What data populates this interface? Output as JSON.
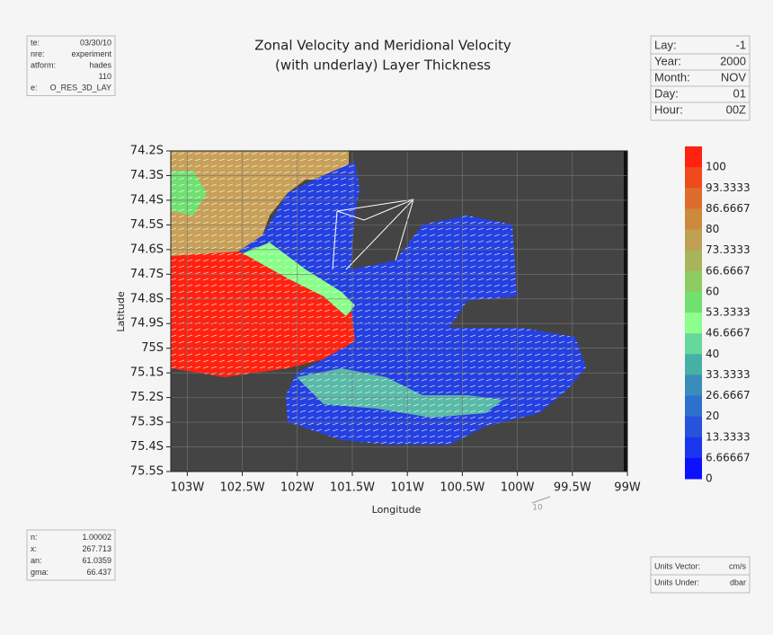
{
  "chart_data": {
    "type": "map",
    "title": [
      "Zonal Velocity and Meridional Velocity",
      "(with underlay) Layer Thickness"
    ],
    "xlabel": "Longitude",
    "ylabel": "Latitude",
    "xlim": [
      -103.15,
      -99
    ],
    "ylim": [
      -75.5,
      -74.2
    ],
    "xticks": [
      {
        "value": -103,
        "label": "103W"
      },
      {
        "value": -102.5,
        "label": "102.5W"
      },
      {
        "value": -102,
        "label": "102W"
      },
      {
        "value": -101.5,
        "label": "101.5W"
      },
      {
        "value": -101,
        "label": "101W"
      },
      {
        "value": -100.5,
        "label": "100.5W"
      },
      {
        "value": -100,
        "label": "100W"
      },
      {
        "value": -99.5,
        "label": "99.5W"
      },
      {
        "value": -99,
        "label": "99W"
      }
    ],
    "yticks": [
      {
        "value": -74.2,
        "label": "74.2S"
      },
      {
        "value": -74.3,
        "label": "74.3S"
      },
      {
        "value": -74.4,
        "label": "74.4S"
      },
      {
        "value": -74.5,
        "label": "74.5S"
      },
      {
        "value": -74.6,
        "label": "74.6S"
      },
      {
        "value": -74.7,
        "label": "74.7S"
      },
      {
        "value": -74.8,
        "label": "74.8S"
      },
      {
        "value": -74.9,
        "label": "74.9S"
      },
      {
        "value": -75,
        "label": "75S"
      },
      {
        "value": -75.1,
        "label": "75.1S"
      },
      {
        "value": -75.2,
        "label": "75.2S"
      },
      {
        "value": -75.3,
        "label": "75.3S"
      },
      {
        "value": -75.4,
        "label": "75.4S"
      },
      {
        "value": -75.5,
        "label": "75.5S"
      }
    ],
    "grid": true,
    "colorbar": {
      "levels": [
        100,
        93.3333,
        86.6667,
        80,
        73.3333,
        66.6667,
        60,
        53.3333,
        46.6667,
        40,
        33.3333,
        26.6667,
        20,
        13.3333,
        6.66667,
        0
      ],
      "colors": [
        "#ff2210",
        "#ee4a1c",
        "#dd6c2c",
        "#cc8a3c",
        "#c0a052",
        "#a8b45c",
        "#8ccc62",
        "#70e06e",
        "#8cff8c",
        "#66d89a",
        "#46b0a6",
        "#3a8cba",
        "#2e70cc",
        "#2652dc",
        "#1a36ec",
        "#0c10ff"
      ]
    },
    "reference_vector": "10"
  },
  "info_top_left": [
    [
      "te:",
      "03/30/10"
    ],
    [
      "nre:",
      "experiment"
    ],
    [
      "atform:",
      "hades"
    ],
    [
      "110"
    ],
    [
      "e:",
      "O_RES_3D_LAY"
    ]
  ],
  "info_top_right": [
    [
      "Lay:",
      "-1"
    ],
    [
      "Year:",
      "2000"
    ],
    [
      "Month:",
      "NOV"
    ],
    [
      "Day:",
      "01"
    ],
    [
      "Hour:",
      "00Z"
    ]
  ],
  "info_bottom_left": [
    [
      "n:",
      "1.00002"
    ],
    [
      "x:",
      "267.713"
    ],
    [
      "an:",
      "61.0359"
    ],
    [
      "gma:",
      "66.437"
    ]
  ],
  "info_bottom_right": [
    [
      "Units Vector:",
      "cm/s"
    ],
    [
      "Units Under:",
      "dbar"
    ]
  ]
}
